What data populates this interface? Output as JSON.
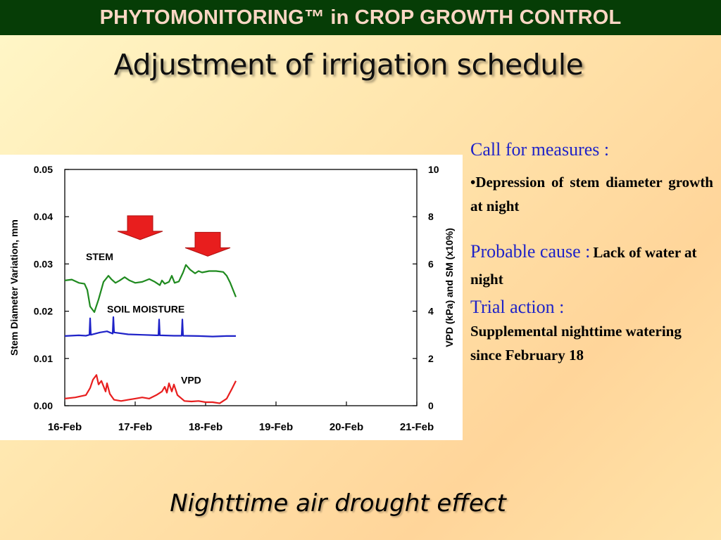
{
  "banner": {
    "text": "PHYTOMONITORING™ in CROP GROWTH CONTROL"
  },
  "slide": {
    "title": "Adjustment of irrigation schedule",
    "caption": "Nighttime air drought effect"
  },
  "notes": {
    "call_heading": "Call for measures :",
    "call_item": "•Depression of stem diameter growth at night",
    "cause_heading": "Probable cause :",
    "cause_text": "Lack of water at night",
    "trial_heading": "Trial action :",
    "trial_text": "Supplemental nighttime watering since February 18"
  },
  "colors": {
    "banner_bg": "#063d06",
    "banner_text": "#fbd7c4",
    "heading_blue": "#1f23c8",
    "arrow_red": "#e81e1e",
    "stem": "#1f8a1f",
    "soil_moisture": "#1e22c8",
    "vpd": "#e81e1e"
  },
  "chart_data": {
    "type": "line",
    "x_categories": [
      "16-Feb",
      "17-Feb",
      "18-Feb",
      "19-Feb",
      "20-Feb",
      "21-Feb"
    ],
    "y_left": {
      "label": "Stem Diameter Variation, mm",
      "range": [
        0,
        0.05
      ],
      "ticks": [
        "0.00",
        "0.01",
        "0.02",
        "0.03",
        "0.04",
        "0.05"
      ]
    },
    "y_right": {
      "label": "VPD (kPa) and SM (x10%)",
      "range": [
        0,
        10
      ],
      "ticks": [
        "0",
        "2",
        "4",
        "6",
        "8",
        "10"
      ]
    },
    "grid": false,
    "series": [
      {
        "name": "STEM",
        "axis": "left",
        "color": "#1f8a1f",
        "points": [
          [
            0,
            0.0265
          ],
          [
            0.1,
            0.0267
          ],
          [
            0.2,
            0.026
          ],
          [
            0.28,
            0.0258
          ],
          [
            0.32,
            0.0245
          ],
          [
            0.36,
            0.021
          ],
          [
            0.42,
            0.0198
          ],
          [
            0.48,
            0.0225
          ],
          [
            0.55,
            0.0262
          ],
          [
            0.62,
            0.0275
          ],
          [
            0.66,
            0.0268
          ],
          [
            0.72,
            0.026
          ],
          [
            0.78,
            0.0265
          ],
          [
            0.85,
            0.0272
          ],
          [
            0.92,
            0.0265
          ],
          [
            1.0,
            0.026
          ],
          [
            1.1,
            0.0262
          ],
          [
            1.2,
            0.0268
          ],
          [
            1.28,
            0.0262
          ],
          [
            1.35,
            0.0255
          ],
          [
            1.38,
            0.0265
          ],
          [
            1.42,
            0.0258
          ],
          [
            1.48,
            0.0262
          ],
          [
            1.52,
            0.0275
          ],
          [
            1.56,
            0.026
          ],
          [
            1.62,
            0.0263
          ],
          [
            1.68,
            0.0282
          ],
          [
            1.72,
            0.0298
          ],
          [
            1.78,
            0.0288
          ],
          [
            1.85,
            0.028
          ],
          [
            1.9,
            0.0285
          ],
          [
            1.95,
            0.0282
          ],
          [
            2.05,
            0.0285
          ],
          [
            2.15,
            0.0285
          ],
          [
            2.25,
            0.0283
          ],
          [
            2.3,
            0.0275
          ],
          [
            2.35,
            0.026
          ],
          [
            2.43,
            0.023
          ]
        ]
      },
      {
        "name": "SOIL MOISTURE",
        "axis": "right",
        "color": "#1e22c8",
        "points": [
          [
            0,
            2.95
          ],
          [
            0.2,
            2.98
          ],
          [
            0.3,
            2.96
          ],
          [
            0.35,
            3.0
          ],
          [
            0.36,
            3.7
          ],
          [
            0.37,
            3.0
          ],
          [
            0.5,
            3.1
          ],
          [
            0.6,
            3.15
          ],
          [
            0.68,
            3.05
          ],
          [
            0.69,
            3.75
          ],
          [
            0.7,
            3.1
          ],
          [
            0.9,
            3.02
          ],
          [
            1.1,
            3.0
          ],
          [
            1.3,
            2.98
          ],
          [
            1.33,
            2.98
          ],
          [
            1.34,
            3.65
          ],
          [
            1.35,
            2.98
          ],
          [
            1.55,
            2.96
          ],
          [
            1.66,
            2.96
          ],
          [
            1.67,
            3.65
          ],
          [
            1.68,
            2.96
          ],
          [
            1.9,
            2.95
          ],
          [
            2.1,
            2.93
          ],
          [
            2.3,
            2.95
          ],
          [
            2.43,
            2.95
          ]
        ]
      },
      {
        "name": "VPD",
        "axis": "right",
        "color": "#e81e1e",
        "points": [
          [
            0,
            0.3
          ],
          [
            0.15,
            0.35
          ],
          [
            0.3,
            0.45
          ],
          [
            0.36,
            0.75
          ],
          [
            0.4,
            1.1
          ],
          [
            0.45,
            1.3
          ],
          [
            0.48,
            0.9
          ],
          [
            0.52,
            1.05
          ],
          [
            0.58,
            0.6
          ],
          [
            0.6,
            0.95
          ],
          [
            0.64,
            0.5
          ],
          [
            0.7,
            0.25
          ],
          [
            0.8,
            0.2
          ],
          [
            0.9,
            0.25
          ],
          [
            1.0,
            0.3
          ],
          [
            1.1,
            0.35
          ],
          [
            1.2,
            0.3
          ],
          [
            1.3,
            0.45
          ],
          [
            1.38,
            0.6
          ],
          [
            1.42,
            0.8
          ],
          [
            1.45,
            0.55
          ],
          [
            1.48,
            0.95
          ],
          [
            1.52,
            0.6
          ],
          [
            1.55,
            0.9
          ],
          [
            1.6,
            0.45
          ],
          [
            1.7,
            0.2
          ],
          [
            1.8,
            0.18
          ],
          [
            1.9,
            0.2
          ],
          [
            2.0,
            0.15
          ],
          [
            2.1,
            0.15
          ],
          [
            2.2,
            0.1
          ],
          [
            2.3,
            0.3
          ],
          [
            2.38,
            0.75
          ],
          [
            2.43,
            1.05
          ]
        ]
      }
    ],
    "annotations": [
      {
        "text": "STEM",
        "x": 0.3,
        "y": 0.0308,
        "axis": "left"
      },
      {
        "text": "SOIL MOISTURE",
        "x": 0.6,
        "y": 0.0197,
        "axis": "left"
      },
      {
        "text": "VPD",
        "x": 1.65,
        "y": 0.0047,
        "axis": "left"
      }
    ],
    "arrows": [
      {
        "x": 1.07,
        "y": 0.0402,
        "axis": "left"
      },
      {
        "x": 2.03,
        "y": 0.0367,
        "axis": "left"
      }
    ]
  }
}
